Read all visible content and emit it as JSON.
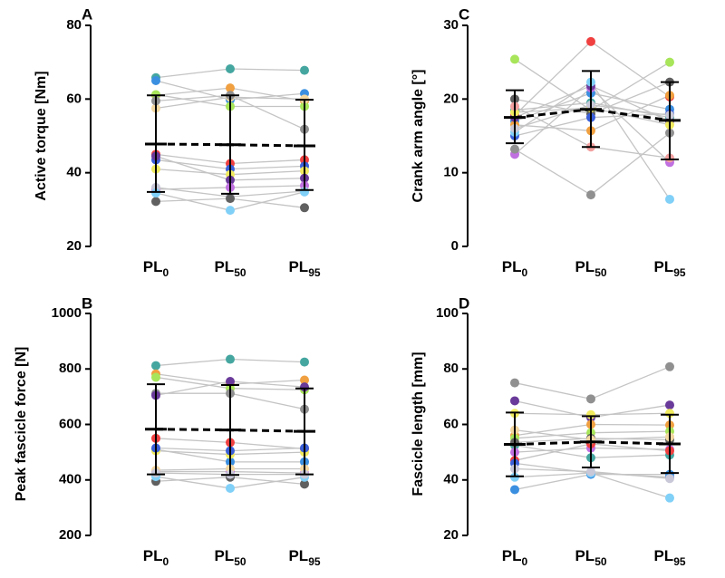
{
  "chart_data": [
    {
      "panel": "A",
      "type": "scatter",
      "ylabel": "Active torque [Nm]",
      "ylim": [
        20,
        80
      ],
      "yticks": [
        20,
        40,
        60,
        80
      ],
      "categories": [
        {
          "main": "PL",
          "sub": "0"
        },
        {
          "main": "PL",
          "sub": "50"
        },
        {
          "main": "PL",
          "sub": "95"
        }
      ],
      "mean": [
        47.8,
        47.6,
        47.3
      ],
      "sd_upper": [
        61.0,
        61.0,
        59.8
      ],
      "sd_lower": [
        34.8,
        34.3,
        35.3
      ],
      "series": [
        {
          "color": "#45a6a0",
          "values": [
            65.8,
            68.2,
            67.8
          ]
        },
        {
          "color": "#3b8fe0",
          "values": [
            65.0,
            59.8,
            61.5
          ]
        },
        {
          "color": "#f0a040",
          "values": [
            61.0,
            63.0,
            59.5
          ]
        },
        {
          "color": "#a8e55a",
          "values": [
            61.2,
            58.0,
            58.0
          ]
        },
        {
          "color": "#f3d7a0",
          "values": [
            57.5,
            60.5,
            60.0
          ]
        },
        {
          "color": "#909090",
          "values": [
            59.5,
            61.0,
            51.8
          ]
        },
        {
          "color": "#f04040",
          "values": [
            45.0,
            42.5,
            43.5
          ]
        },
        {
          "color": "#3a5fd8",
          "values": [
            43.5,
            41.0,
            41.8
          ]
        },
        {
          "color": "#f0ea60",
          "values": [
            41.0,
            39.5,
            40.5
          ]
        },
        {
          "color": "#6a3a9a",
          "values": [
            44.5,
            38.0,
            38.5
          ]
        },
        {
          "color": "#c070e0",
          "values": [
            35.5,
            36.0,
            36.5
          ]
        },
        {
          "color": "#c8c8d8",
          "values": [
            36.0,
            33.5,
            35.0
          ]
        },
        {
          "color": "#606060",
          "values": [
            32.2,
            33.0,
            30.5
          ]
        },
        {
          "color": "#80d0f8",
          "values": [
            34.5,
            29.8,
            34.8
          ]
        }
      ]
    },
    {
      "panel": "C",
      "type": "scatter",
      "ylabel": "Crank arm angle [°]",
      "ylim": [
        0,
        30
      ],
      "yticks": [
        0,
        10,
        20,
        30
      ],
      "categories": [
        {
          "main": "PL",
          "sub": "0"
        },
        {
          "main": "PL",
          "sub": "50"
        },
        {
          "main": "PL",
          "sub": "95"
        }
      ],
      "mean": [
        17.5,
        18.6,
        17.1
      ],
      "sd_upper": [
        21.2,
        23.8,
        22.3
      ],
      "sd_lower": [
        14.0,
        13.5,
        11.8
      ],
      "series": [
        {
          "color": "#a8e55a",
          "values": [
            25.4,
            18.5,
            25.0
          ]
        },
        {
          "color": "#f04040",
          "values": [
            17.8,
            27.8,
            20.3
          ]
        },
        {
          "color": "#606060",
          "values": [
            20.0,
            18.0,
            22.3
          ]
        },
        {
          "color": "#45a6a0",
          "values": [
            18.5,
            19.5,
            17.5
          ]
        },
        {
          "color": "#3b8fe0",
          "values": [
            17.0,
            20.8,
            18.6
          ]
        },
        {
          "color": "#f0a040",
          "values": [
            16.5,
            15.7,
            20.5
          ]
        },
        {
          "color": "#3a5fd8",
          "values": [
            15.0,
            17.5,
            18.0
          ]
        },
        {
          "color": "#c070e0",
          "values": [
            12.5,
            21.5,
            11.4
          ]
        },
        {
          "color": "#909090",
          "values": [
            13.2,
            7.0,
            15.4
          ]
        },
        {
          "color": "#6a3a9a",
          "values": [
            17.5,
            21.8,
            17.0
          ]
        },
        {
          "color": "#f0ea60",
          "values": [
            18.2,
            18.8,
            16.5
          ]
        },
        {
          "color": "#80d0f8",
          "values": [
            15.5,
            22.3,
            6.4
          ]
        },
        {
          "color": "#f4a0a0",
          "values": [
            19.0,
            13.5,
            12.0
          ]
        },
        {
          "color": "#c8c8d8",
          "values": [
            16.0,
            19.2,
            17.8
          ]
        }
      ]
    },
    {
      "panel": "B",
      "type": "scatter",
      "ylabel": "Peak fascicle force [N]",
      "ylim": [
        200,
        1000
      ],
      "yticks": [
        200,
        400,
        600,
        800,
        1000
      ],
      "categories": [
        {
          "main": "PL",
          "sub": "0"
        },
        {
          "main": "PL",
          "sub": "50"
        },
        {
          "main": "PL",
          "sub": "95"
        }
      ],
      "mean": [
        583,
        580,
        575
      ],
      "sd_upper": [
        745,
        742,
        730
      ],
      "sd_lower": [
        420,
        418,
        420
      ],
      "series": [
        {
          "color": "#45a6a0",
          "values": [
            812,
            835,
            825
          ]
        },
        {
          "color": "#f0a040",
          "values": [
            782,
            745,
            760
          ]
        },
        {
          "color": "#a8e55a",
          "values": [
            770,
            730,
            725
          ]
        },
        {
          "color": "#909090",
          "values": [
            712,
            712,
            655
          ]
        },
        {
          "color": "#6a3a9a",
          "values": [
            705,
            755,
            735
          ]
        },
        {
          "color": "#f04040",
          "values": [
            550,
            535,
            512
          ]
        },
        {
          "color": "#3b8fe0",
          "values": [
            510,
            465,
            465
          ]
        },
        {
          "color": "#f0ea60",
          "values": [
            505,
            492,
            500
          ]
        },
        {
          "color": "#3a5fd8",
          "values": [
            515,
            505,
            515
          ]
        },
        {
          "color": "#c070e0",
          "values": [
            430,
            430,
            425
          ]
        },
        {
          "color": "#f3d7a0",
          "values": [
            435,
            440,
            440
          ]
        },
        {
          "color": "#606060",
          "values": [
            395,
            410,
            385
          ]
        },
        {
          "color": "#80d0f8",
          "values": [
            412,
            370,
            410
          ]
        },
        {
          "color": "#c8c8d8",
          "values": [
            425,
            420,
            420
          ]
        }
      ]
    },
    {
      "panel": "D",
      "type": "scatter",
      "ylabel": "Fascicle length [mm]",
      "ylim": [
        20,
        100
      ],
      "yticks": [
        20,
        40,
        60,
        80,
        100
      ],
      "categories": [
        {
          "main": "PL",
          "sub": "0"
        },
        {
          "main": "PL",
          "sub": "50"
        },
        {
          "main": "PL",
          "sub": "95"
        }
      ],
      "mean": [
        52.8,
        53.7,
        53.0
      ],
      "sd_upper": [
        64.3,
        63.0,
        63.5
      ],
      "sd_lower": [
        41.3,
        44.5,
        42.5
      ],
      "series": [
        {
          "color": "#909090",
          "values": [
            75.0,
            69.2,
            80.8
          ]
        },
        {
          "color": "#6a3a9a",
          "values": [
            68.5,
            62.5,
            67.0
          ]
        },
        {
          "color": "#f0ea60",
          "values": [
            64.0,
            63.5,
            64.0
          ]
        },
        {
          "color": "#f0a040",
          "values": [
            56.0,
            60.0,
            59.8
          ]
        },
        {
          "color": "#a8e55a",
          "values": [
            55.0,
            57.0,
            57.5
          ]
        },
        {
          "color": "#45a6a0",
          "values": [
            52.5,
            48.0,
            49.0
          ]
        },
        {
          "color": "#c070e0",
          "values": [
            50.0,
            51.5,
            51.0
          ]
        },
        {
          "color": "#f04040",
          "values": [
            47.0,
            53.0,
            50.5
          ]
        },
        {
          "color": "#606060",
          "values": [
            53.5,
            55.0,
            54.5
          ]
        },
        {
          "color": "#3a5fd8",
          "values": [
            46.0,
            42.5,
            41.0
          ]
        },
        {
          "color": "#3b8fe0",
          "values": [
            36.5,
            42.0,
            42.0
          ]
        },
        {
          "color": "#80d0f8",
          "values": [
            41.0,
            42.5,
            33.5
          ]
        },
        {
          "color": "#c8c8d8",
          "values": [
            44.0,
            43.0,
            40.5
          ]
        },
        {
          "color": "#f3d7a0",
          "values": [
            58.0,
            54.5,
            55.5
          ]
        }
      ]
    }
  ]
}
